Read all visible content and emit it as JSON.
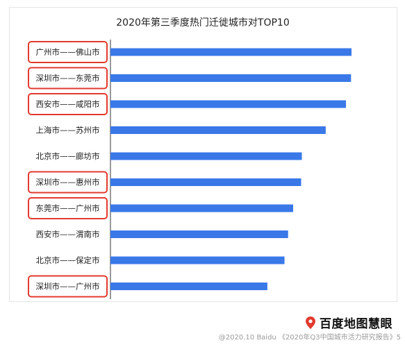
{
  "chart_data": {
    "type": "bar",
    "orientation": "horizontal",
    "title": "2020年第三季度热门迁徙城市对TOP10",
    "categories": [
      "广州市——佛山市",
      "深圳市——东莞市",
      "西安市——咸阳市",
      "上海市——苏州市",
      "北京市——廊坊市",
      "深圳市——惠州市",
      "东莞市——广州市",
      "西安市——渭南市",
      "北京市——保定市",
      "深圳市——广州市"
    ],
    "values": [
      100,
      99.8,
      97.7,
      89.3,
      79.4,
      79.1,
      75.8,
      73.7,
      72.2,
      65.1
    ],
    "highlighted": [
      true,
      true,
      true,
      false,
      false,
      true,
      true,
      false,
      false,
      true
    ],
    "xlim": [
      0,
      100
    ],
    "grid": false,
    "bar_color": "#3A78E8",
    "highlight_color": "#E23A2E"
  },
  "brand": {
    "name": "百度地图慧眼",
    "icon": "location-pin-icon",
    "icon_color": "#E23A2E"
  },
  "footer": {
    "note": "@2020.10 Baidu 《2020年Q3中国城市活力研究报告》5"
  }
}
